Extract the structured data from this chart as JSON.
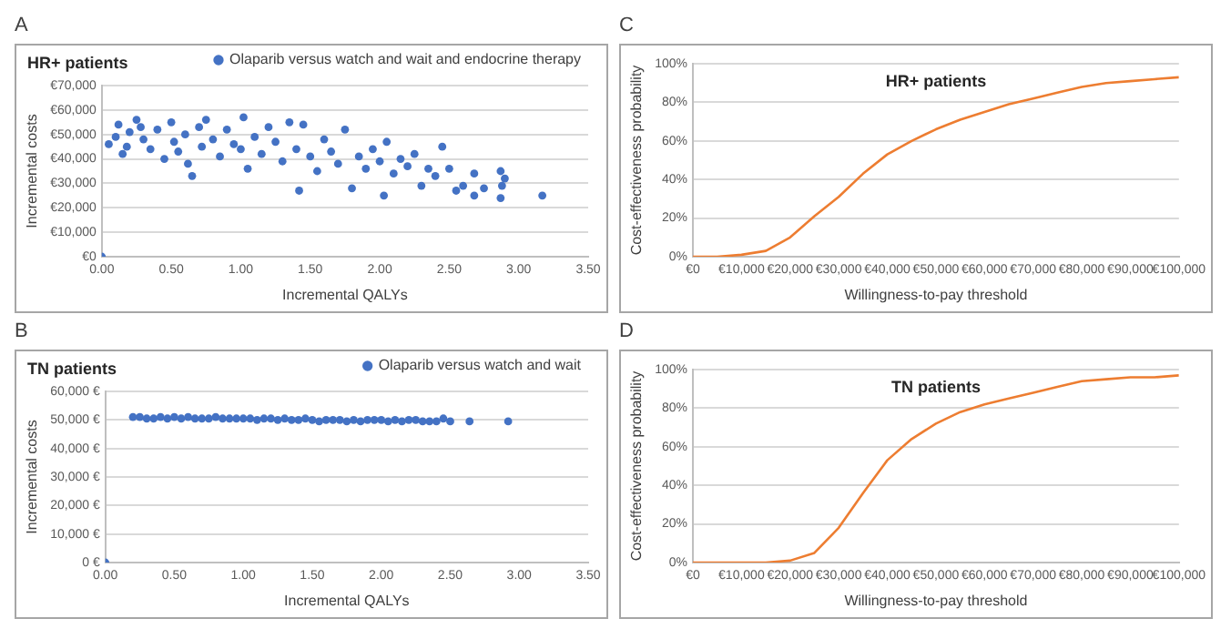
{
  "chart_data": [
    {
      "type": "scatter",
      "title": "HR+ patients",
      "xlabel": "Incremental QALYs",
      "ylabel": "Incremental costs",
      "annotations": [
        "A"
      ],
      "legend": "top right",
      "grid": "y",
      "marker": "circle",
      "xlim": [
        0,
        3.5
      ],
      "xticks": [
        {
          "value": 0,
          "label": "0.00"
        },
        {
          "value": 0.5,
          "label": "0.50"
        },
        {
          "value": 1,
          "label": "1.00"
        },
        {
          "value": 1.5,
          "label": "1.50"
        },
        {
          "value": 2,
          "label": "2.00"
        },
        {
          "value": 2.5,
          "label": "2.50"
        },
        {
          "value": 3,
          "label": "3.00"
        },
        {
          "value": 3.5,
          "label": "3.50"
        }
      ],
      "ylim": [
        0,
        70000
      ],
      "yticks": [
        {
          "value": 0,
          "label": "€0"
        },
        {
          "value": 10000,
          "label": "€10,000"
        },
        {
          "value": 20000,
          "label": "€20,000"
        },
        {
          "value": 30000,
          "label": "€30,000"
        },
        {
          "value": 40000,
          "label": "€40,000"
        },
        {
          "value": 50000,
          "label": "€50,000"
        },
        {
          "value": 60000,
          "label": "€60,000"
        },
        {
          "value": 70000,
          "label": "€70,000"
        }
      ],
      "series": [
        {
          "name": "Olaparib versus watch and wait and endocrine therapy",
          "color": "#4472c4",
          "x": [
            0,
            0.05,
            0.1,
            0.12,
            0.15,
            0.18,
            0.2,
            0.25,
            0.28,
            0.3,
            0.35,
            0.4,
            0.45,
            0.5,
            0.52,
            0.55,
            0.6,
            0.62,
            0.65,
            0.7,
            0.72,
            0.75,
            0.8,
            0.85,
            0.9,
            0.95,
            1.0,
            1.02,
            1.05,
            1.1,
            1.15,
            1.2,
            1.25,
            1.3,
            1.35,
            1.4,
            1.42,
            1.45,
            1.5,
            1.55,
            1.6,
            1.65,
            1.7,
            1.75,
            1.8,
            1.85,
            1.9,
            1.95,
            2.0,
            2.03,
            2.05,
            2.1,
            2.15,
            2.2,
            2.25,
            2.3,
            2.35,
            2.4,
            2.45,
            2.5,
            2.55,
            2.6,
            2.68,
            2.68,
            2.75,
            2.87,
            2.87,
            2.88,
            2.9,
            3.17
          ],
          "values": [
            0,
            46000,
            49000,
            54000,
            42000,
            45000,
            51000,
            56000,
            53000,
            48000,
            44000,
            52000,
            40000,
            55000,
            47000,
            43000,
            50000,
            38000,
            33000,
            53000,
            45000,
            56000,
            48000,
            41000,
            52000,
            46000,
            44000,
            57000,
            36000,
            49000,
            42000,
            53000,
            47000,
            39000,
            55000,
            44000,
            27000,
            54000,
            41000,
            35000,
            48000,
            43000,
            38000,
            52000,
            28000,
            41000,
            36000,
            44000,
            39000,
            25000,
            47000,
            34000,
            40000,
            37000,
            42000,
            29000,
            36000,
            33000,
            45000,
            36000,
            27000,
            29000,
            34000,
            25000,
            28000,
            35000,
            24000,
            29000,
            32000,
            25000
          ]
        }
      ]
    },
    {
      "type": "line",
      "title": "HR+ patients",
      "xlabel": "Willingness-to-pay threshold",
      "ylabel": "Cost-effectiveness probability",
      "annotations": [
        "C"
      ],
      "grid": "y",
      "marker": "none",
      "xlim": [
        0,
        100000
      ],
      "xticks": [
        {
          "value": 0,
          "label": "€0"
        },
        {
          "value": 10000,
          "label": "€10,000"
        },
        {
          "value": 20000,
          "label": "€20,000"
        },
        {
          "value": 30000,
          "label": "€30,000"
        },
        {
          "value": 40000,
          "label": "€40,000"
        },
        {
          "value": 50000,
          "label": "€50,000"
        },
        {
          "value": 60000,
          "label": "€60,000"
        },
        {
          "value": 70000,
          "label": "€70,000"
        },
        {
          "value": 80000,
          "label": "€80,000"
        },
        {
          "value": 90000,
          "label": "€90,000"
        },
        {
          "value": 100000,
          "label": "€100,000"
        }
      ],
      "ylim": [
        0,
        100
      ],
      "yticks": [
        {
          "value": 0,
          "label": "0%"
        },
        {
          "value": 20,
          "label": "20%"
        },
        {
          "value": 40,
          "label": "40%"
        },
        {
          "value": 60,
          "label": "60%"
        },
        {
          "value": 80,
          "label": "80%"
        },
        {
          "value": 100,
          "label": "100%"
        }
      ],
      "series": [
        {
          "color": "#ed7d31",
          "x": [
            0,
            5000,
            10000,
            15000,
            20000,
            25000,
            30000,
            35000,
            40000,
            45000,
            50000,
            55000,
            60000,
            65000,
            70000,
            75000,
            80000,
            85000,
            90000,
            95000,
            100000
          ],
          "values": [
            0,
            0,
            1,
            3,
            10,
            21,
            31,
            43,
            53,
            60,
            66,
            71,
            75,
            79,
            82,
            85,
            88,
            90,
            91,
            92,
            93
          ]
        }
      ]
    },
    {
      "type": "scatter",
      "title": "TN patients",
      "xlabel": "Incremental QALYs",
      "ylabel": "Incremental costs",
      "annotations": [
        "B"
      ],
      "legend": "top right",
      "grid": "y",
      "marker": "circle",
      "xlim": [
        0,
        3.5
      ],
      "xticks": [
        {
          "value": 0,
          "label": "0.00"
        },
        {
          "value": 0.5,
          "label": "0.50"
        },
        {
          "value": 1,
          "label": "1.00"
        },
        {
          "value": 1.5,
          "label": "1.50"
        },
        {
          "value": 2,
          "label": "2.00"
        },
        {
          "value": 2.5,
          "label": "2.50"
        },
        {
          "value": 3,
          "label": "3.00"
        },
        {
          "value": 3.5,
          "label": "3.50"
        }
      ],
      "ylim": [
        0,
        60000
      ],
      "yticks": [
        {
          "value": 0,
          "label": "0 €"
        },
        {
          "value": 10000,
          "label": "10,000 €"
        },
        {
          "value": 20000,
          "label": "20,000 €"
        },
        {
          "value": 30000,
          "label": "30,000 €"
        },
        {
          "value": 40000,
          "label": "40,000 €"
        },
        {
          "value": 50000,
          "label": "50,000 €"
        },
        {
          "value": 60000,
          "label": "60,000 €"
        }
      ],
      "series": [
        {
          "name": "Olaparib versus watch and wait",
          "color": "#4472c4",
          "x": [
            0,
            0.2,
            0.25,
            0.3,
            0.35,
            0.4,
            0.45,
            0.5,
            0.55,
            0.6,
            0.65,
            0.7,
            0.75,
            0.8,
            0.85,
            0.9,
            0.95,
            1.0,
            1.05,
            1.1,
            1.15,
            1.2,
            1.25,
            1.3,
            1.35,
            1.4,
            1.45,
            1.5,
            1.55,
            1.6,
            1.65,
            1.7,
            1.75,
            1.8,
            1.85,
            1.9,
            1.95,
            2.0,
            2.05,
            2.1,
            2.15,
            2.2,
            2.25,
            2.3,
            2.35,
            2.4,
            2.45,
            2.5,
            2.64,
            2.92
          ],
          "values": [
            0,
            51000,
            51000,
            50500,
            50500,
            51000,
            50500,
            51000,
            50500,
            51000,
            50500,
            50500,
            50500,
            51000,
            50500,
            50500,
            50500,
            50500,
            50500,
            50000,
            50500,
            50500,
            50000,
            50500,
            50000,
            50000,
            50500,
            50000,
            49500,
            50000,
            50000,
            50000,
            49500,
            50000,
            49500,
            50000,
            50000,
            50000,
            49500,
            50000,
            49500,
            50000,
            50000,
            49500,
            49500,
            49500,
            50500,
            49500,
            49500,
            49500
          ]
        }
      ]
    },
    {
      "type": "line",
      "title": "TN patients",
      "xlabel": "Willingness-to-pay threshold",
      "ylabel": "Cost-effectiveness probability",
      "annotations": [
        "D"
      ],
      "grid": "y",
      "marker": "none",
      "xlim": [
        0,
        100000
      ],
      "xticks": [
        {
          "value": 0,
          "label": "€0"
        },
        {
          "value": 10000,
          "label": "€10,000"
        },
        {
          "value": 20000,
          "label": "€20,000"
        },
        {
          "value": 30000,
          "label": "€30,000"
        },
        {
          "value": 40000,
          "label": "€40,000"
        },
        {
          "value": 50000,
          "label": "€50,000"
        },
        {
          "value": 60000,
          "label": "€60,000"
        },
        {
          "value": 70000,
          "label": "€70,000"
        },
        {
          "value": 80000,
          "label": "€80,000"
        },
        {
          "value": 90000,
          "label": "€90,000"
        },
        {
          "value": 100000,
          "label": "€100,000"
        }
      ],
      "ylim": [
        0,
        100
      ],
      "yticks": [
        {
          "value": 0,
          "label": "0%"
        },
        {
          "value": 20,
          "label": "20%"
        },
        {
          "value": 40,
          "label": "40%"
        },
        {
          "value": 60,
          "label": "60%"
        },
        {
          "value": 80,
          "label": "80%"
        },
        {
          "value": 100,
          "label": "100%"
        }
      ],
      "series": [
        {
          "color": "#ed7d31",
          "x": [
            0,
            5000,
            10000,
            15000,
            20000,
            25000,
            30000,
            35000,
            40000,
            45000,
            50000,
            55000,
            60000,
            65000,
            70000,
            75000,
            80000,
            85000,
            90000,
            95000,
            100000
          ],
          "values": [
            0,
            0,
            0,
            0,
            1,
            5,
            18,
            36,
            53,
            64,
            72,
            78,
            82,
            85,
            88,
            91,
            94,
            95,
            96,
            96,
            97
          ]
        }
      ]
    }
  ]
}
